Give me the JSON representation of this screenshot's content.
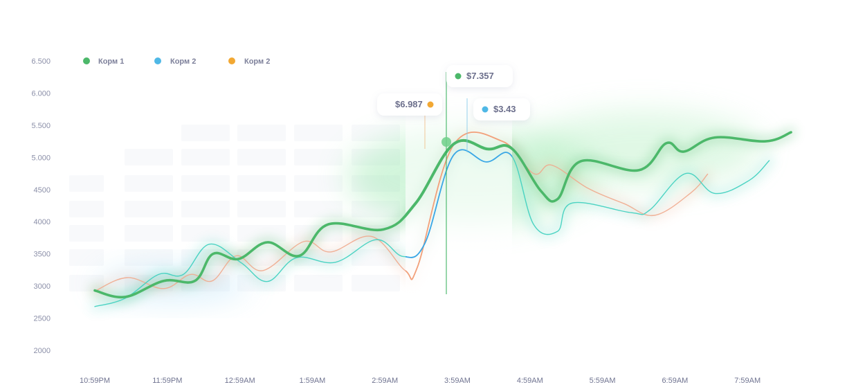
{
  "chart_data": {
    "type": "line",
    "x": [
      "10:59PM",
      "11:59PM",
      "12:59AM",
      "1:59AM",
      "2:59AM",
      "3:59AM",
      "4:59AM",
      "5:59AM",
      "6:59AM",
      "7:59AM"
    ],
    "yticks": [
      "6.500",
      "6.000",
      "5.500",
      "5.000",
      "4500",
      "4000",
      "3500",
      "3000",
      "2500",
      "2000"
    ],
    "ylim": [
      2000,
      6500
    ],
    "legend_position": "top-left",
    "grid": false,
    "series": [
      {
        "name": "Корм 1",
        "color": "#4cb86a",
        "points": [
          [
            0.0,
            2930
          ],
          [
            0.42,
            2830
          ],
          [
            0.95,
            3080
          ],
          [
            1.38,
            3080
          ],
          [
            1.63,
            3500
          ],
          [
            1.98,
            3420
          ],
          [
            2.38,
            3680
          ],
          [
            2.82,
            3470
          ],
          [
            3.22,
            3960
          ],
          [
            3.98,
            3880
          ],
          [
            4.42,
            4280
          ],
          [
            4.95,
            5210
          ],
          [
            5.42,
            5130
          ],
          [
            5.75,
            5140
          ],
          [
            6.15,
            4480
          ],
          [
            6.38,
            4350
          ],
          [
            6.7,
            4940
          ],
          [
            7.5,
            4800
          ],
          [
            7.88,
            5220
          ],
          [
            8.12,
            5090
          ],
          [
            8.55,
            5310
          ],
          [
            9.25,
            5250
          ],
          [
            9.6,
            5390
          ]
        ]
      },
      {
        "name": "Корм 2",
        "color": "#42d1c0",
        "points": [
          [
            0.0,
            2680
          ],
          [
            0.42,
            2810
          ],
          [
            0.88,
            3180
          ],
          [
            1.22,
            3180
          ],
          [
            1.58,
            3650
          ],
          [
            2.02,
            3360
          ],
          [
            2.38,
            3070
          ],
          [
            2.78,
            3440
          ],
          [
            3.32,
            3370
          ],
          [
            3.88,
            3720
          ],
          [
            4.25,
            3460
          ],
          [
            4.55,
            3660
          ],
          [
            4.95,
            5040
          ],
          [
            5.4,
            4930
          ],
          [
            5.75,
            5020
          ],
          [
            6.05,
            3960
          ],
          [
            6.38,
            3850
          ],
          [
            6.58,
            4290
          ],
          [
            7.4,
            4140
          ],
          [
            7.65,
            4180
          ],
          [
            8.15,
            4750
          ],
          [
            8.55,
            4440
          ],
          [
            9.02,
            4640
          ],
          [
            9.3,
            4950
          ]
        ]
      },
      {
        "name": "Корм 2",
        "color": "#f0a98c",
        "points": [
          [
            0.0,
            2920
          ],
          [
            0.45,
            3130
          ],
          [
            0.95,
            2960
          ],
          [
            1.32,
            3180
          ],
          [
            1.62,
            3080
          ],
          [
            1.95,
            3470
          ],
          [
            2.32,
            3240
          ],
          [
            2.88,
            3690
          ],
          [
            3.25,
            3530
          ],
          [
            3.82,
            3770
          ],
          [
            4.28,
            3240
          ],
          [
            4.45,
            3300
          ],
          [
            4.95,
            5200
          ],
          [
            5.62,
            5250
          ],
          [
            6.05,
            4750
          ],
          [
            6.3,
            4880
          ],
          [
            6.8,
            4520
          ],
          [
            7.3,
            4280
          ],
          [
            7.72,
            4100
          ],
          [
            8.22,
            4450
          ],
          [
            8.45,
            4740
          ]
        ]
      }
    ],
    "legend": [
      {
        "label": "Корм 1",
        "color": "#4cb86a"
      },
      {
        "label": "Корм 2",
        "color": "#4fb8e6"
      },
      {
        "label": "Корм 2",
        "color": "#f2a833"
      }
    ],
    "tooltips": [
      {
        "label": "$7.357",
        "color": "#4cb86a"
      },
      {
        "label": "$6.987",
        "color": "#f2a833"
      },
      {
        "label": "$3.43",
        "color": "#4fb8e6"
      }
    ]
  }
}
